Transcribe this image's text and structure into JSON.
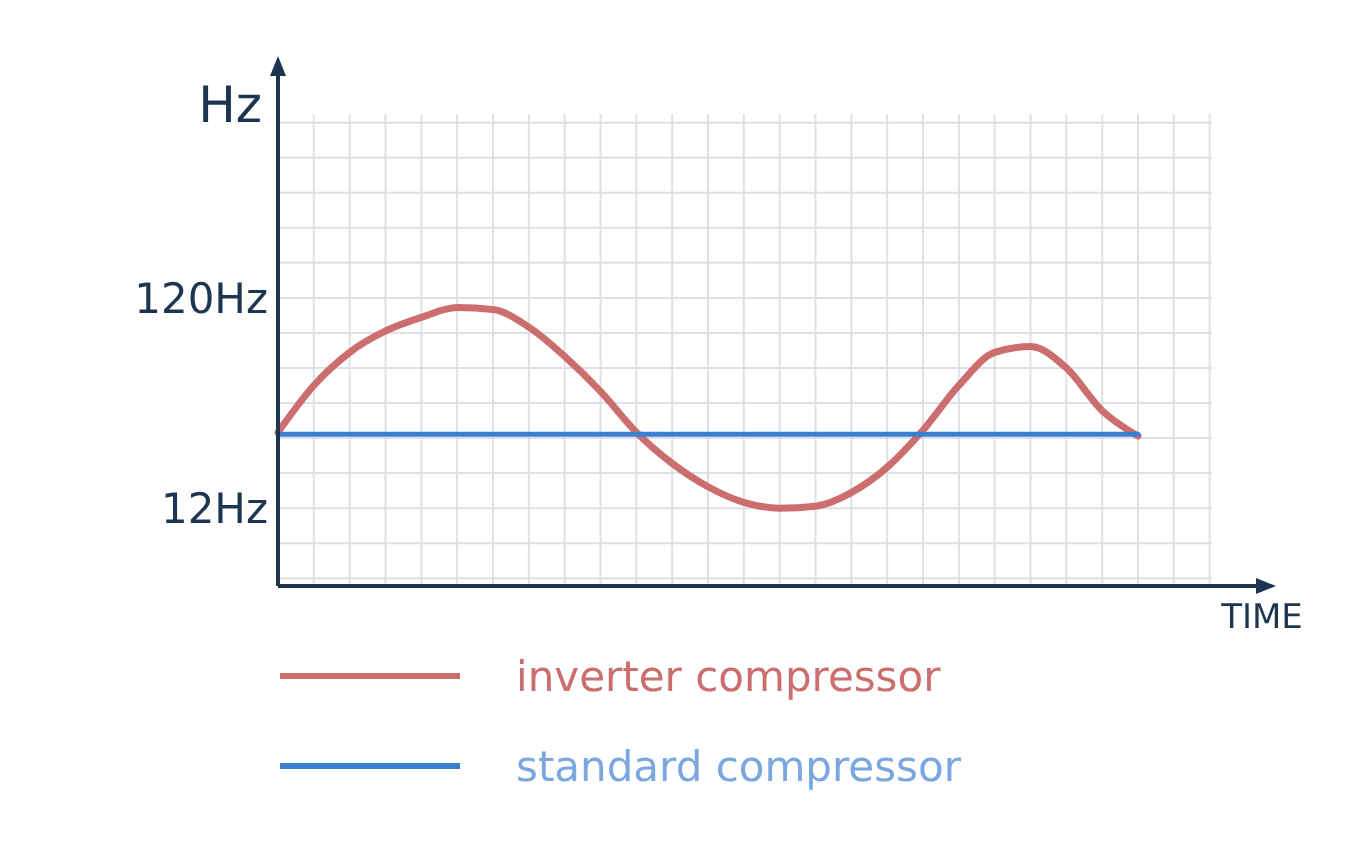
{
  "chart_data": {
    "type": "line",
    "xlabel": "TIME",
    "ylabel": "Hz",
    "categories": [
      null,
      null,
      null,
      null,
      null,
      null,
      null,
      null,
      null,
      null,
      null,
      null,
      null,
      null,
      null,
      null,
      null,
      null,
      null,
      null,
      null,
      null,
      null,
      null,
      null
    ],
    "series": [
      {
        "name": "inverter compressor",
        "color": "#cc6e6e",
        "values": [
          51,
          75,
          92,
          103,
          110,
          115,
          114,
          105,
          90,
          72,
          51,
          35,
          23,
          15,
          12,
          13,
          20,
          33,
          52,
          75,
          92,
          95,
          84,
          62,
          49
        ]
      },
      {
        "name": "standard compressor",
        "color": "#3a7fd0",
        "values": [
          50,
          50,
          50,
          50,
          50,
          50,
          50,
          50,
          50,
          50,
          50,
          50,
          50,
          50,
          50,
          50,
          50,
          50,
          50,
          50,
          50,
          50,
          50,
          50,
          50
        ]
      }
    ],
    "ylim": [
      -28,
      235
    ],
    "yticks": [
      {
        "value": 12,
        "label": "12Hz"
      },
      {
        "value": 120,
        "label": "120Hz"
      }
    ],
    "grid": true,
    "legend": "bottom",
    "marker": "none",
    "line_style": "solid"
  }
}
